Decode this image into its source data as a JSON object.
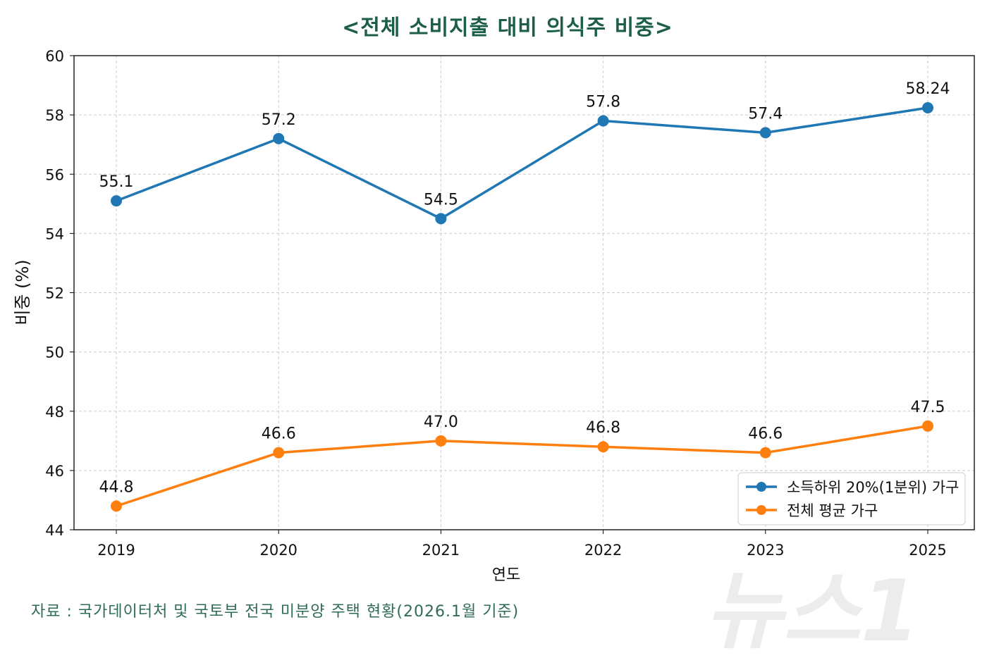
{
  "chart_data": {
    "type": "line",
    "title": "<전체 소비지출 대비 의식주 비중>",
    "xlabel": "연도",
    "ylabel": "비중 (%)",
    "categories": [
      "2019",
      "2020",
      "2021",
      "2022",
      "2023",
      "2025"
    ],
    "ylim": [
      44,
      60
    ],
    "yticks": [
      44,
      46,
      48,
      50,
      52,
      54,
      56,
      58,
      60
    ],
    "grid": true,
    "legend_position": "bottom-right",
    "series": [
      {
        "name": "소득하위 20%(1분위) 가구",
        "color": "#1f77b4",
        "values": [
          55.1,
          57.2,
          54.5,
          57.8,
          57.4,
          58.24
        ],
        "labels": [
          "55.1",
          "57.2",
          "54.5",
          "57.8",
          "57.4",
          "58.24"
        ]
      },
      {
        "name": "전체 평균 가구",
        "color": "#ff7f0e",
        "values": [
          44.8,
          46.6,
          47.0,
          46.8,
          46.6,
          47.5
        ],
        "labels": [
          "44.8",
          "46.6",
          "47.0",
          "46.8",
          "46.6",
          "47.5"
        ]
      }
    ]
  },
  "source": "자료 : 국가데이터처 및 국토부 전국 미분양 주택 현황(2026.1월 기준)",
  "watermark": "뉴스1"
}
